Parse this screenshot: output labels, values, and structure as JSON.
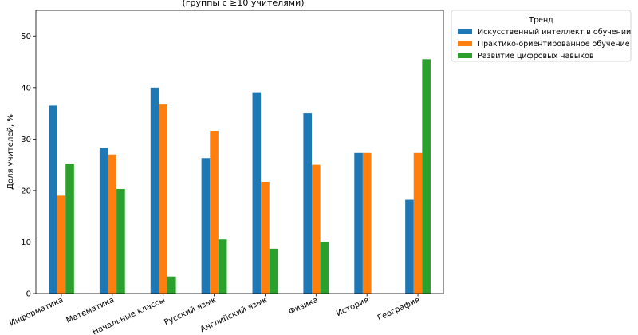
{
  "chart_data": {
    "type": "bar",
    "title": "(группы с ≥10 учителями)",
    "xlabel": "",
    "ylabel": "Доля учителей, %",
    "ylim": [
      0,
      55
    ],
    "yticks": [
      0,
      10,
      20,
      30,
      40,
      50
    ],
    "categories": [
      "Информатика",
      "Математика",
      "Начальные классы",
      "Русский язык",
      "Английский язык",
      "Физика",
      "История",
      "География"
    ],
    "series": [
      {
        "name": "Искусственный интеллект в обучении",
        "color": "#1f77b4",
        "values": [
          36.5,
          28.3,
          40.0,
          26.3,
          39.1,
          35.0,
          27.3,
          18.2
        ]
      },
      {
        "name": "Практико-ориентированное обучение",
        "color": "#ff7f0e",
        "values": [
          19.0,
          27.0,
          36.7,
          31.6,
          21.7,
          25.0,
          27.3,
          27.3
        ]
      },
      {
        "name": "Развитие цифровых навыков",
        "color": "#2ca02c",
        "values": [
          25.2,
          20.3,
          3.3,
          10.5,
          8.7,
          10.0,
          0,
          45.5
        ]
      }
    ],
    "legend": {
      "title": "Тренд",
      "placement": "outside-top-right"
    },
    "grid": false
  }
}
